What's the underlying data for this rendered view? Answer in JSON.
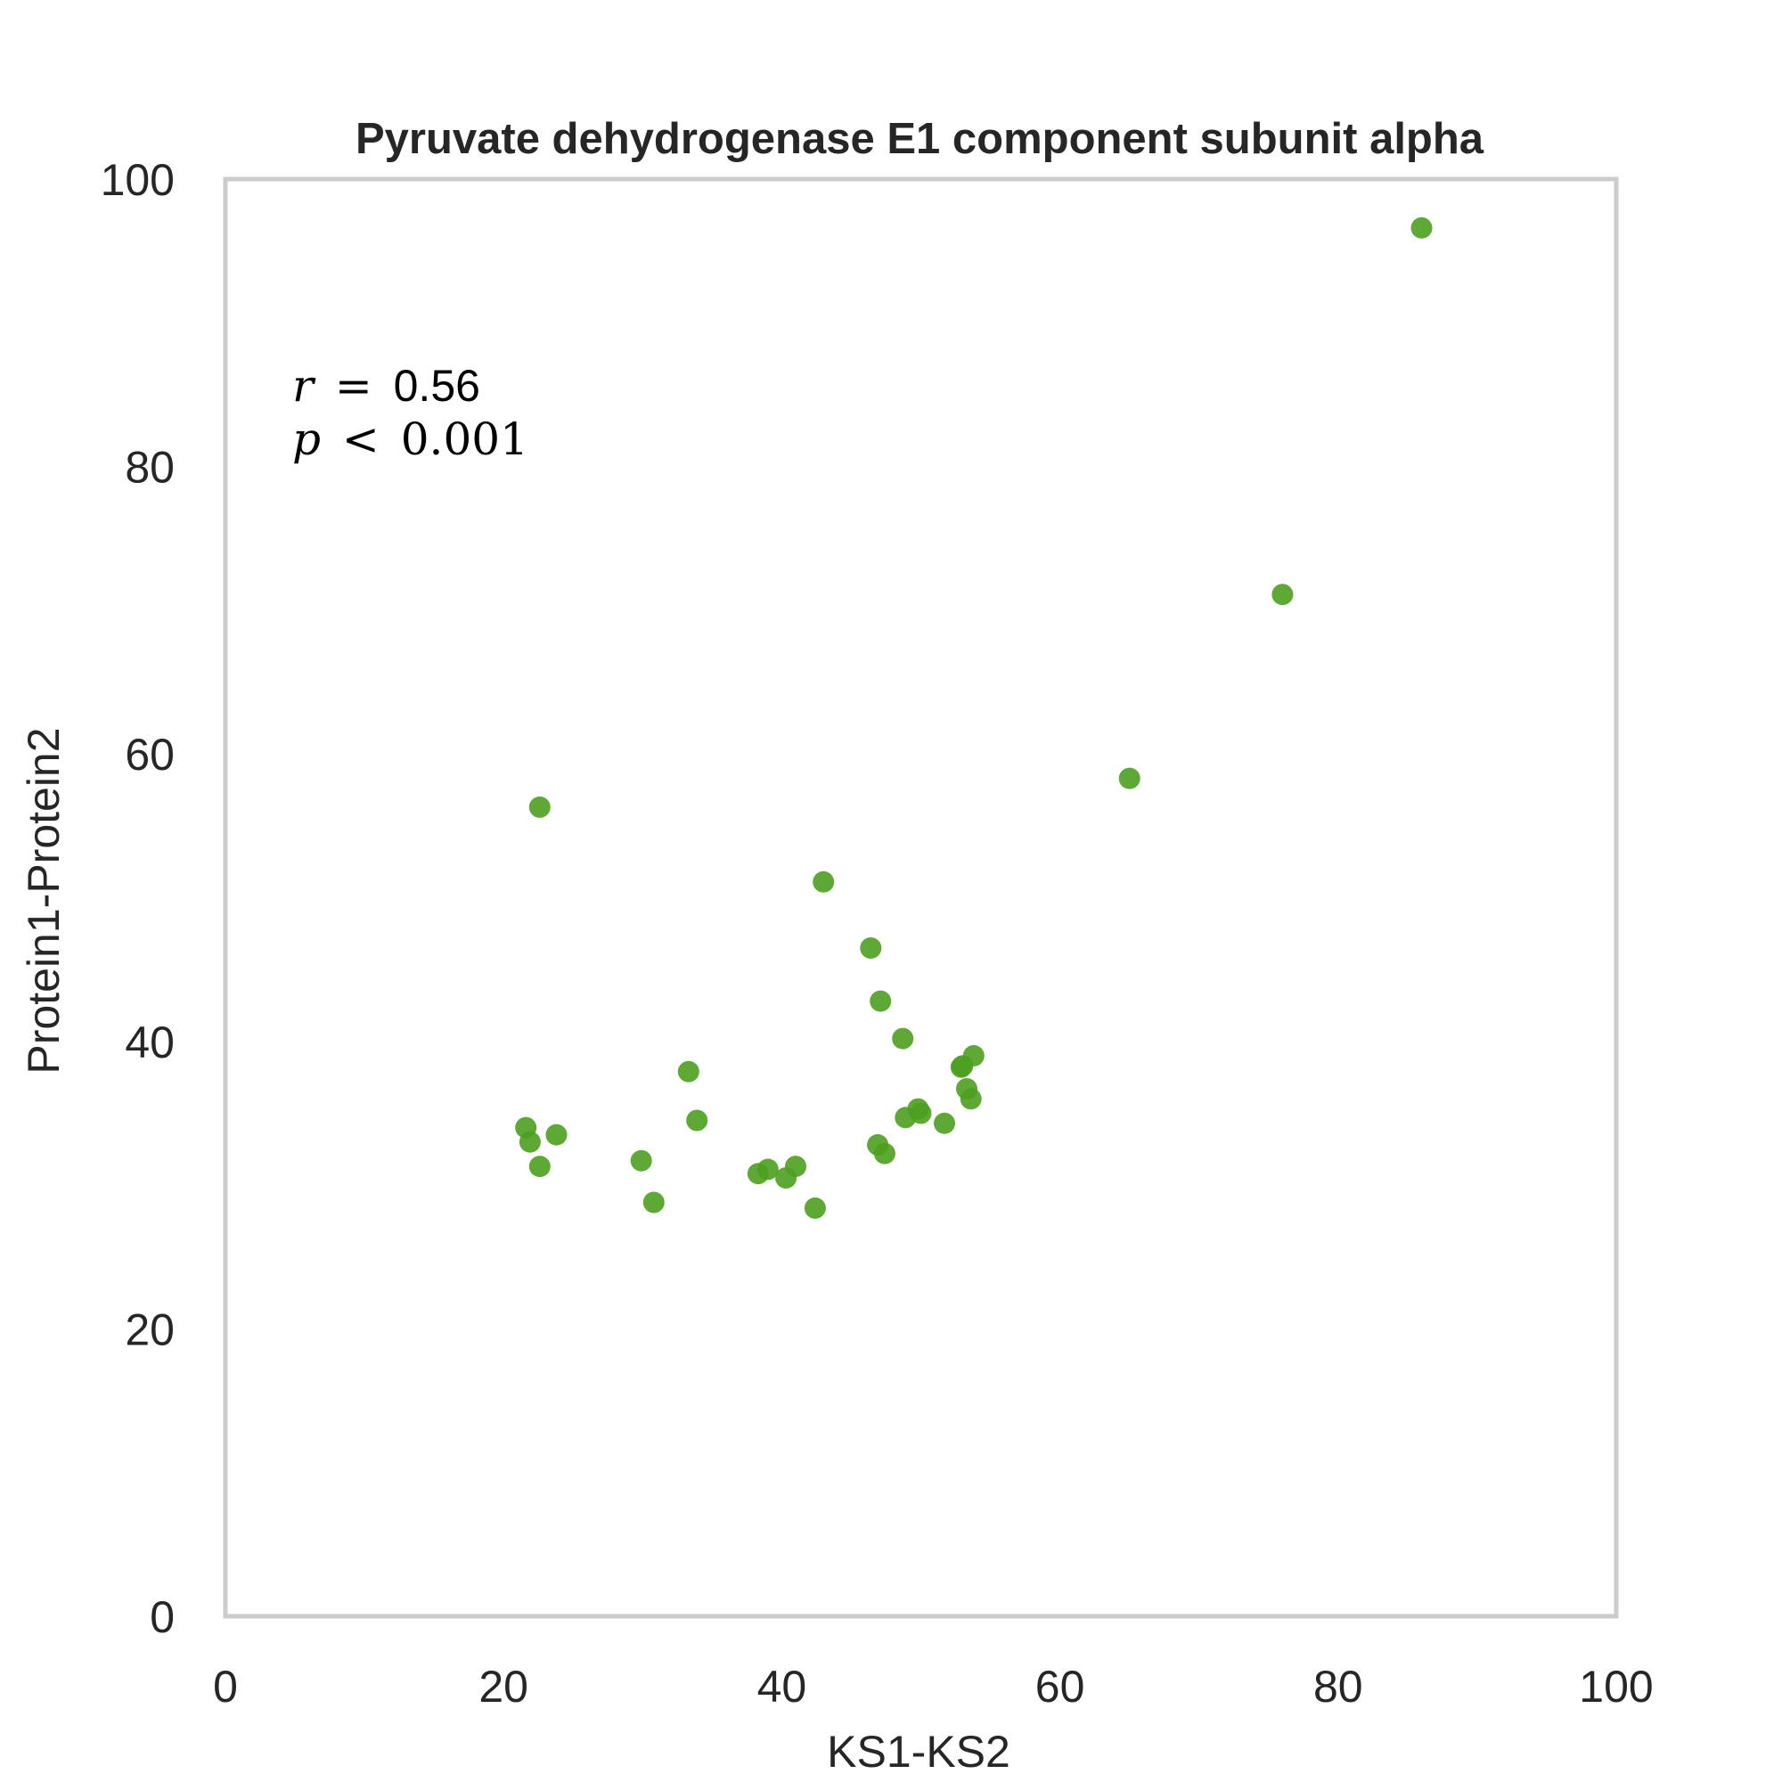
{
  "chart_data": {
    "type": "scatter",
    "title": "Pyruvate dehydrogenase E1 component subunit alpha",
    "xlabel": "KS1-KS2",
    "ylabel": "Protein1-Protein2",
    "xlim": [
      0,
      100
    ],
    "ylim": [
      0,
      100
    ],
    "xticks": [
      "0",
      "20",
      "40",
      "60",
      "80",
      "100"
    ],
    "yticks": [
      "0",
      "20",
      "40",
      "60",
      "80",
      "100"
    ],
    "grid": false,
    "point_color": "#4c9e1f",
    "frame_color": "#cccccc",
    "annotation": {
      "r_label": "r",
      "r_op": "=",
      "r_value": "0.56",
      "p_label": "p",
      "p_op": "<",
      "p_value": "0.001"
    },
    "series": [
      {
        "x": [
          21.6,
          21.9,
          22.6,
          22.6,
          23.8,
          29.9,
          30.8,
          33.3,
          33.9,
          38.3,
          39.0,
          40.3,
          41.0,
          42.4,
          43.0,
          46.4,
          46.9,
          47.1,
          47.4,
          48.7,
          48.9,
          49.8,
          50.0,
          51.7,
          52.9,
          53.0,
          53.3,
          53.6,
          53.8,
          65.0,
          76.0,
          86.0
        ],
        "y": [
          34.0,
          33.0,
          56.3,
          31.3,
          33.5,
          31.7,
          28.8,
          37.9,
          34.5,
          30.8,
          31.1,
          30.5,
          31.3,
          28.4,
          51.1,
          46.5,
          32.8,
          42.8,
          32.2,
          40.2,
          34.7,
          35.3,
          35.0,
          34.3,
          38.2,
          38.3,
          36.7,
          36.0,
          39.0,
          58.3,
          71.1,
          96.6
        ]
      }
    ]
  }
}
